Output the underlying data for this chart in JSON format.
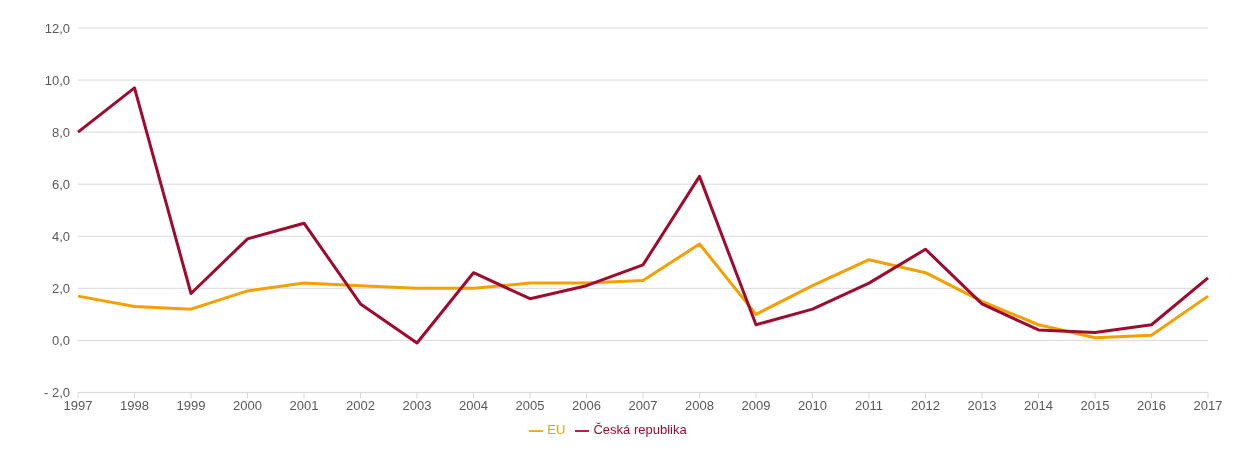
{
  "chart_data": {
    "type": "line",
    "categories": [
      "1997",
      "1998",
      "1999",
      "2000",
      "2001",
      "2002",
      "2003",
      "2004",
      "2005",
      "2006",
      "2007",
      "2008",
      "2009",
      "2010",
      "2011",
      "2012",
      "2013",
      "2014",
      "2015",
      "2016",
      "2017"
    ],
    "series": [
      {
        "name": "EU",
        "color": "#f5a000",
        "values": [
          1.7,
          1.3,
          1.2,
          1.9,
          2.2,
          2.1,
          2.0,
          2.0,
          2.2,
          2.2,
          2.3,
          3.7,
          1.0,
          2.1,
          3.1,
          2.6,
          1.5,
          0.6,
          0.1,
          0.2,
          1.7
        ]
      },
      {
        "name": "Česká republika",
        "color": "#9e0b2e",
        "values": [
          8.0,
          9.7,
          1.8,
          3.9,
          4.5,
          1.4,
          -0.1,
          2.6,
          1.6,
          2.1,
          2.9,
          6.3,
          0.6,
          1.2,
          2.2,
          3.5,
          1.4,
          0.4,
          0.3,
          0.6,
          2.4
        ]
      }
    ],
    "ylim": [
      -2,
      12
    ],
    "yticks": [
      {
        "value": -2,
        "label": "- 2,0"
      },
      {
        "value": 0,
        "label": "0,0"
      },
      {
        "value": 2,
        "label": "2,0"
      },
      {
        "value": 4,
        "label": "4,0"
      },
      {
        "value": 6,
        "label": "6,0"
      },
      {
        "value": 8,
        "label": "8,0"
      },
      {
        "value": 10,
        "label": "10,0"
      },
      {
        "value": 12,
        "label": "12,0"
      }
    ],
    "grid": "y",
    "legend": "bottom",
    "marker": "none",
    "line_style": "solid"
  }
}
